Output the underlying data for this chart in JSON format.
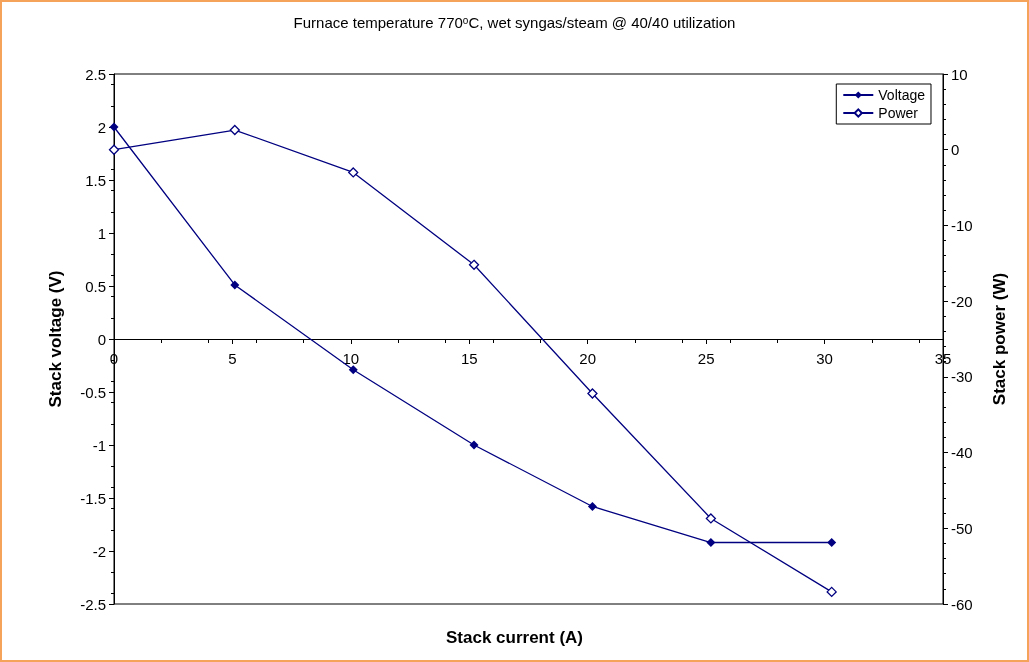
{
  "chart_data": {
    "type": "line",
    "title": "Furnace temperature 770$^{o}$C, wet syngas/steam @ 40/40 utilization",
    "xlabel": "Stack current (A)",
    "ylabel": "Stack voltage (V)",
    "y2label": "Stack power (W)",
    "xlim": [
      0,
      35
    ],
    "xticks": [
      0,
      5,
      10,
      15,
      20,
      25,
      30,
      35
    ],
    "ylim": [
      -2.5,
      2.5
    ],
    "yticks": [
      -2.5,
      -2,
      -1.5,
      -1,
      -0.5,
      0,
      0.5,
      1,
      1.5,
      2,
      2.5
    ],
    "y2lim": [
      -60,
      10
    ],
    "y2ticks": [
      -60,
      -50,
      -40,
      -30,
      -20,
      -10,
      0,
      10
    ],
    "grid": false,
    "legend": "top right",
    "marker": "diamond",
    "line_style": "solid",
    "series": [
      {
        "name": "Voltage",
        "color": "#000080",
        "x": [
          0,
          5.1,
          10.1,
          15.2,
          20.2,
          25.2,
          30.3
        ],
        "values": [
          2.0,
          0.51,
          -0.29,
          -1.0,
          -1.58,
          -1.92,
          -1.92
        ]
      },
      {
        "name": "Power",
        "color": "#000080",
        "axis": "y2",
        "x": [
          0,
          5.1,
          10.1,
          15.2,
          20.2,
          25.2,
          30.3
        ],
        "values": [
          0,
          2.6,
          -3.0,
          -15.2,
          -32.2,
          -48.7,
          -58.4
        ]
      }
    ]
  }
}
